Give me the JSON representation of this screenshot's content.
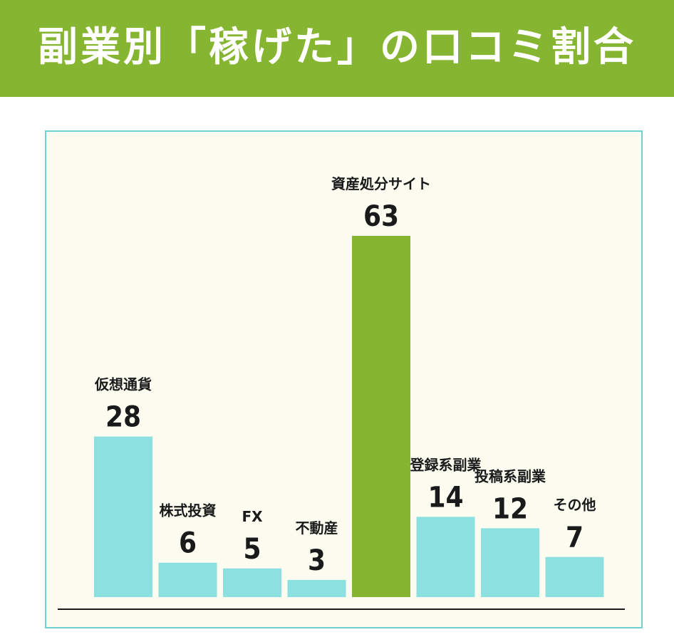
{
  "header": {
    "title": "副業別「稼げた」の口コミ割合"
  },
  "colors": {
    "header_bg": "#86b532",
    "bar_default": "#8de0e0",
    "bar_highlight": "#86b532",
    "panel_bg": "#fcfcf0",
    "panel_border": "#6fd3d3"
  },
  "chart_data": {
    "type": "bar",
    "title": "副業別「稼げた」の口コミ割合",
    "categories": [
      "仮想通貨",
      "株式投資",
      "FX",
      "不動産",
      "資産処分サイト",
      "登録系副業",
      "投稿系副業",
      "その他"
    ],
    "values": [
      28,
      6,
      5,
      3,
      63,
      14,
      12,
      7
    ],
    "highlight": "資産処分サイト",
    "xlabel": "",
    "ylabel": "",
    "ylim": [
      0,
      63
    ],
    "grid": false,
    "legend": "none"
  }
}
